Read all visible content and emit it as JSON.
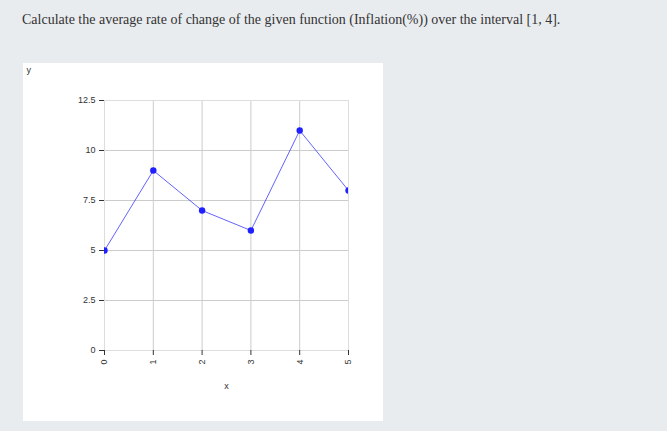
{
  "chart_data": {
    "type": "line",
    "title": "Calculate the average rate of change of the given function (Inflation(%)) over the interval [1, 4].",
    "x": [
      0,
      1,
      2,
      3,
      4,
      5
    ],
    "values": [
      5,
      9,
      7,
      6,
      11,
      8
    ],
    "xlabel": "x",
    "ylabel": "y",
    "xlim": [
      0,
      5
    ],
    "ylim": [
      0,
      12.5
    ],
    "xticks": [
      0,
      1,
      2,
      3,
      4,
      5
    ],
    "yticks": [
      0,
      2.5,
      5,
      7.5,
      10,
      12.5
    ],
    "grid": true,
    "color": "#1f1fff",
    "marker": "circle"
  }
}
